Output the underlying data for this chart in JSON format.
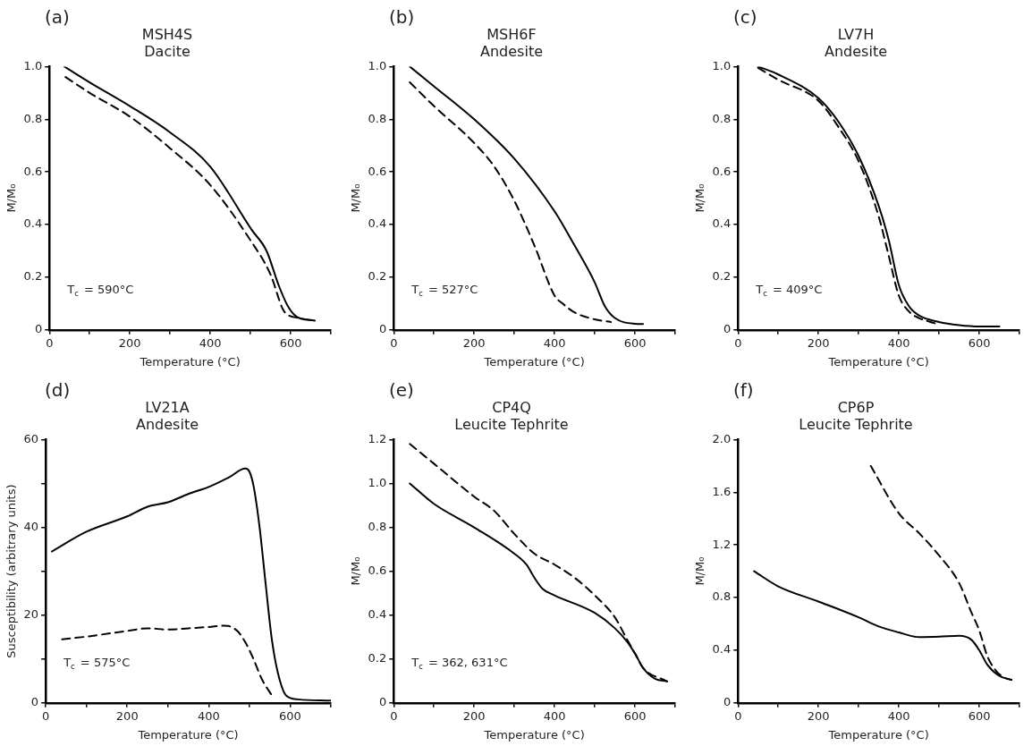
{
  "chart_data": [
    {
      "type": "line",
      "title": "MSH4S",
      "subtitle": "Dacite",
      "xlabel": "Temperature (°C)",
      "ylabel": "M/M₀",
      "annotations": [
        "(a)",
        "T$_{c}$ = 590°C"
      ],
      "xlim": [
        0,
        700
      ],
      "xticks": [
        0,
        {
          "value": 100,
          "label": null
        },
        200,
        {
          "value": 300,
          "label": null
        },
        400,
        {
          "value": 500,
          "label": null
        },
        600,
        {
          "value": 700,
          "label": null
        }
      ],
      "ylim": [
        0,
        1
      ],
      "yticks": [
        0,
        0.2,
        0.4,
        0.6,
        0.8,
        {
          "value": 1,
          "label": "1.0"
        }
      ],
      "grid": false,
      "marker": "none",
      "series": [
        {
          "color": "#000000",
          "line_style": "solid",
          "x": [
            37,
            100,
            200,
            300,
            400,
            503,
            540,
            570,
            593,
            615,
            660
          ],
          "values": [
            1.0,
            0.94,
            0.85,
            0.75,
            0.62,
            0.38,
            0.3,
            0.17,
            0.09,
            0.05,
            0.035
          ]
        },
        {
          "color": "#000000",
          "line_style": "dashed",
          "x": [
            40,
            100,
            200,
            300,
            400,
            500,
            550,
            580,
            590,
            620,
            660
          ],
          "values": [
            0.96,
            0.9,
            0.81,
            0.69,
            0.55,
            0.34,
            0.21,
            0.08,
            0.06,
            0.045,
            0.035
          ]
        }
      ]
    },
    {
      "type": "line",
      "title": "MSH6F",
      "subtitle": "Andesite",
      "xlabel": "Temperature (°C)",
      "ylabel": "M/M₀",
      "annotations": [
        "(b)",
        "T$_{c}$ = 527°C"
      ],
      "xlim": [
        0,
        700
      ],
      "xticks": [
        0,
        {
          "value": 100,
          "label": null
        },
        200,
        {
          "value": 300,
          "label": null
        },
        400,
        {
          "value": 500,
          "label": null
        },
        600,
        {
          "value": 700,
          "label": null
        }
      ],
      "ylim": [
        0,
        1
      ],
      "yticks": [
        0,
        0.2,
        0.4,
        0.6,
        0.8,
        {
          "value": 1,
          "label": "1.0"
        }
      ],
      "grid": false,
      "marker": "none",
      "series": [
        {
          "color": "#000000",
          "line_style": "solid",
          "x": [
            40,
            100,
            200,
            300,
            400,
            450,
            500,
            525,
            550,
            600,
            620
          ],
          "values": [
            1.0,
            0.925,
            0.8,
            0.65,
            0.45,
            0.32,
            0.18,
            0.09,
            0.045,
            0.023,
            0.022
          ]
        },
        {
          "color": "#000000",
          "line_style": "dashed",
          "x": [
            40,
            100,
            200,
            250,
            300,
            350,
            400,
            420,
            450,
            500,
            540
          ],
          "values": [
            0.94,
            0.85,
            0.71,
            0.62,
            0.49,
            0.32,
            0.13,
            0.1,
            0.066,
            0.04,
            0.03
          ]
        }
      ]
    },
    {
      "type": "line",
      "title": "LV7H",
      "subtitle": "Andesite",
      "xlabel": "Temperature (°C)",
      "ylabel": "M/M₀",
      "annotations": [
        "(c)",
        "T$_{c}$ = 409°C"
      ],
      "xlim": [
        0,
        700
      ],
      "xticks": [
        0,
        {
          "value": 100,
          "label": null
        },
        200,
        {
          "value": 300,
          "label": null
        },
        400,
        {
          "value": 500,
          "label": null
        },
        600,
        {
          "value": 700,
          "label": null
        }
      ],
      "ylim": [
        0,
        1
      ],
      "yticks": [
        0,
        0.2,
        0.4,
        0.6,
        0.8,
        {
          "value": 1,
          "label": "1.0"
        }
      ],
      "grid": false,
      "marker": "none",
      "series": [
        {
          "color": "#000000",
          "line_style": "solid",
          "x": [
            50,
            100,
            200,
            250,
            300,
            350,
            375,
            400,
            425,
            450,
            500,
            550,
            600,
            650
          ],
          "values": [
            1.0,
            0.97,
            0.88,
            0.79,
            0.66,
            0.47,
            0.34,
            0.17,
            0.09,
            0.055,
            0.03,
            0.018,
            0.013,
            0.013
          ]
        },
        {
          "color": "#000000",
          "line_style": "dashed",
          "x": [
            50,
            100,
            200,
            250,
            300,
            350,
            375,
            400,
            425,
            450,
            490
          ],
          "values": [
            0.995,
            0.95,
            0.87,
            0.77,
            0.64,
            0.43,
            0.28,
            0.13,
            0.07,
            0.045,
            0.025
          ]
        }
      ]
    },
    {
      "type": "line",
      "title": "LV21A",
      "subtitle": "Andesite",
      "xlabel": "Temperature (°C)",
      "ylabel": "Susceptibility (arbitrary units)",
      "annotations": [
        "(d)",
        "T$_{c}$ = 575°C"
      ],
      "xlim": [
        0,
        700
      ],
      "xticks": [
        0,
        {
          "value": 100,
          "label": null
        },
        200,
        {
          "value": 300,
          "label": null
        },
        400,
        {
          "value": 500,
          "label": null
        },
        600,
        {
          "value": 700,
          "label": null
        }
      ],
      "ylim": [
        0,
        60
      ],
      "yticks": [
        0,
        {
          "value": 10,
          "label": null
        },
        20,
        {
          "value": 30,
          "label": null
        },
        40,
        {
          "value": 50,
          "label": null
        },
        60
      ],
      "grid": false,
      "marker": "none",
      "series": [
        {
          "color": "#000000",
          "line_style": "solid",
          "x": [
            15,
            100,
            200,
            250,
            300,
            350,
            400,
            450,
            490,
            500,
            510,
            525,
            540,
            555,
            570,
            590,
            620,
            700
          ],
          "values": [
            34.5,
            39,
            42.5,
            44.7,
            45.7,
            47.6,
            49.2,
            51.4,
            53.4,
            52.7,
            49.5,
            40,
            27,
            14.5,
            6.8,
            1.7,
            0.8,
            0.5
          ]
        },
        {
          "color": "#000000",
          "line_style": "dashed",
          "x": [
            40,
            100,
            200,
            250,
            300,
            350,
            400,
            440,
            470,
            490,
            510,
            530,
            555
          ],
          "values": [
            14.5,
            15.1,
            16.4,
            17,
            16.7,
            17,
            17.3,
            17.6,
            16.4,
            13.8,
            10,
            5.5,
            1.7
          ]
        }
      ]
    },
    {
      "type": "line",
      "title": "CP4Q",
      "subtitle": "Leucite Tephrite",
      "xlabel": "Temperature (°C)",
      "ylabel": "M/M₀",
      "annotations": [
        "(e)",
        "T$_{c}$ = 362, 631°C"
      ],
      "xlim": [
        0,
        700
      ],
      "xticks": [
        0,
        {
          "value": 100,
          "label": null
        },
        200,
        {
          "value": 300,
          "label": null
        },
        400,
        {
          "value": 500,
          "label": null
        },
        600,
        {
          "value": 700,
          "label": null
        }
      ],
      "ylim": [
        0,
        1.2
      ],
      "yticks": [
        0,
        0.2,
        0.4,
        0.6,
        0.8,
        {
          "value": 1,
          "label": "1.0"
        },
        1.2
      ],
      "grid": false,
      "marker": "none",
      "series": [
        {
          "color": "#000000",
          "line_style": "solid",
          "x": [
            40,
            100,
            200,
            300,
            330,
            350,
            370,
            400,
            500,
            550,
            580,
            600,
            620,
            650,
            680
          ],
          "values": [
            1.0,
            0.907,
            0.8,
            0.68,
            0.63,
            0.57,
            0.52,
            0.49,
            0.41,
            0.34,
            0.28,
            0.225,
            0.16,
            0.11,
            0.098
          ]
        },
        {
          "color": "#000000",
          "line_style": "dashed",
          "x": [
            40,
            100,
            200,
            250,
            300,
            350,
            400,
            450,
            500,
            550,
            580,
            600,
            620,
            680
          ],
          "values": [
            1.18,
            1.09,
            0.94,
            0.875,
            0.77,
            0.68,
            0.63,
            0.57,
            0.49,
            0.39,
            0.29,
            0.225,
            0.16,
            0.098
          ]
        }
      ]
    },
    {
      "type": "line",
      "title": "CP6P",
      "subtitle": "Leucite Tephrite",
      "xlabel": "Temperature (°C)",
      "ylabel": "M/M₀",
      "annotations": [
        "(f)"
      ],
      "xlim": [
        0,
        700
      ],
      "xticks": [
        0,
        {
          "value": 100,
          "label": null
        },
        200,
        {
          "value": 300,
          "label": null
        },
        400,
        {
          "value": 500,
          "label": null
        },
        600,
        {
          "value": 700,
          "label": null
        }
      ],
      "ylim": [
        0,
        2
      ],
      "yticks": [
        0,
        0.4,
        0.8,
        1.2,
        1.6,
        {
          "value": 2,
          "label": "2.0"
        }
      ],
      "grid": false,
      "marker": "none",
      "series": [
        {
          "color": "#000000",
          "line_style": "solid",
          "x": [
            40,
            100,
            200,
            300,
            350,
            400,
            450,
            500,
            550,
            580,
            600,
            620,
            650,
            680
          ],
          "values": [
            1.0,
            0.885,
            0.77,
            0.65,
            0.58,
            0.535,
            0.5,
            0.503,
            0.51,
            0.48,
            0.4,
            0.29,
            0.205,
            0.175
          ]
        },
        {
          "color": "#000000",
          "line_style": "dashed",
          "x": [
            330,
            400,
            450,
            500,
            550,
            580,
            600,
            620,
            640,
            660,
            680
          ],
          "values": [
            1.8,
            1.44,
            1.29,
            1.12,
            0.91,
            0.69,
            0.55,
            0.355,
            0.25,
            0.195,
            0.175
          ]
        }
      ]
    }
  ]
}
